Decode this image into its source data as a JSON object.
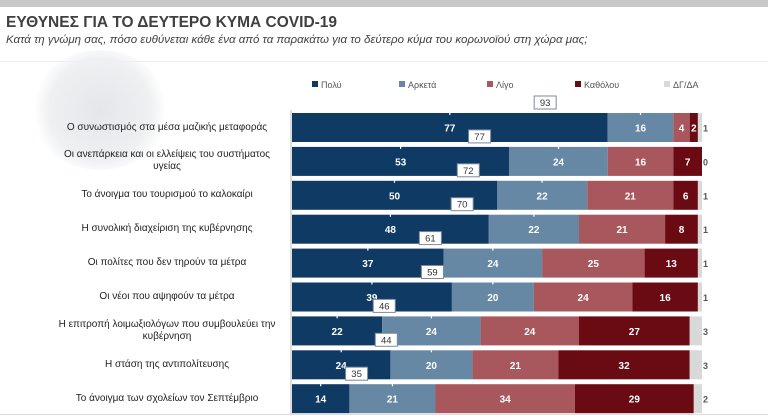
{
  "header": {
    "title": "ΕΥΘΥΝΕΣ ΓΙΑ ΤΟ ΔΕΥΤΕΡΟ ΚΥΜΑ COVID-19",
    "subtitle": "Κατά τη γνώμη σας, πόσο ευθύνεται κάθε ένα από τα παρακάτω για το δεύτερο κύμα του κορωνοϊού στη χώρα μας;"
  },
  "chart_data": {
    "type": "bar",
    "orientation": "horizontal",
    "stacked": true,
    "unit": "%",
    "xlim": [
      0,
      100
    ],
    "legend_position": "top",
    "categories": [
      "Ο συνωστισμός στα μέσα μαζικής μεταφοράς",
      "Οι ανεπάρκεια και οι ελλείψεις του συστήματος υγείας",
      "Το άνοιγμα του τουρισμού το καλοκαίρι",
      "Η συνολική διαχείριση της κυβέρνησης",
      "Οι πολίτες που δεν τηρούν τα μέτρα",
      "Οι νέοι που αψηφούν τα μέτρα",
      "Η επιτροπή λοιμωξιολόγων που συμβουλεύει την κυβέρνηση",
      "Η στάση της αντιπολίτευσης",
      "Το άνοιγμα των σχολείων τον Σεπτέμβριο"
    ],
    "series": [
      {
        "name": "Πολύ",
        "color": "#0f3a64",
        "values": [
          77,
          53,
          50,
          48,
          37,
          39,
          22,
          24,
          14
        ]
      },
      {
        "name": "Αρκετά",
        "color": "#6688a4",
        "values": [
          16,
          24,
          22,
          22,
          24,
          20,
          24,
          20,
          21
        ]
      },
      {
        "name": "Λίγο",
        "color": "#a8585c",
        "values": [
          4,
          16,
          21,
          21,
          25,
          24,
          24,
          21,
          34
        ]
      },
      {
        "name": "Καθόλου",
        "color": "#6a0b14",
        "values": [
          2,
          7,
          6,
          8,
          13,
          16,
          27,
          32,
          29
        ]
      },
      {
        "name": "ΔΓ/ΔΑ",
        "color": "#d9d9d9",
        "values": [
          1,
          0,
          1,
          1,
          1,
          1,
          3,
          3,
          2
        ]
      }
    ],
    "totals_polu_arketa": [
      93,
      77,
      72,
      70,
      61,
      59,
      46,
      44,
      35
    ]
  }
}
